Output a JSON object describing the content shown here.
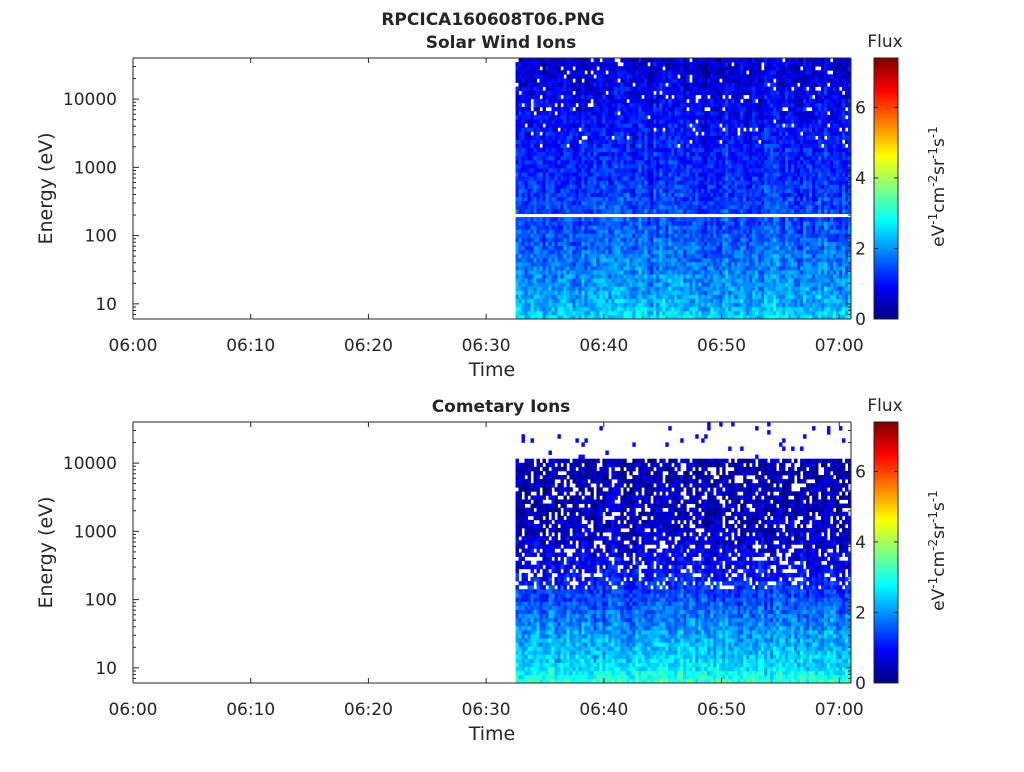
{
  "figure": {
    "title": "RPCICA160608T06.PNG"
  },
  "colors": {
    "colormap": [
      "#00007f",
      "#0000ff",
      "#007fff",
      "#00ffff",
      "#7fff7f",
      "#ffff00",
      "#ff7f00",
      "#ff0000",
      "#7f0000"
    ],
    "gap_line": "#ffffff",
    "axis": "#262626"
  },
  "chart_data": [
    {
      "type": "heatmap",
      "title": "Solar Wind Ions",
      "xlabel": "Time",
      "ylabel": "Energy (eV)",
      "y_scale": "log",
      "ylim": [
        6,
        40000
      ],
      "xlim": [
        "06:00",
        "07:01"
      ],
      "x_ticks": [
        "06:00",
        "06:10",
        "06:20",
        "06:30",
        "06:40",
        "06:50",
        "07:00"
      ],
      "y_ticks": [
        10,
        100,
        1000,
        10000
      ],
      "y_tick_labels": [
        "10",
        "100",
        "1000",
        "10000"
      ],
      "data_start": "06:32.5",
      "data_end": "07:01",
      "colorbar": {
        "title": "Flux",
        "label_parts": [
          "eV",
          "-1",
          "cm",
          "-2",
          "sr",
          "-1",
          "s",
          "-1"
        ],
        "ticks": [
          0,
          2,
          4,
          6
        ],
        "clim": [
          0,
          7.4
        ]
      },
      "intensity_profile": [
        {
          "energy": 6,
          "flux": 2.6
        },
        {
          "energy": 10,
          "flux": 2.2
        },
        {
          "energy": 30,
          "flux": 1.9
        },
        {
          "energy": 100,
          "flux": 1.6
        },
        {
          "energy": 200,
          "flux": 1.45
        },
        {
          "energy": 1000,
          "flux": 1.2
        },
        {
          "energy": 10000,
          "flux": 0.85
        },
        {
          "energy": 40000,
          "flux": 0.55
        }
      ],
      "gap_energy": 200
    },
    {
      "type": "heatmap",
      "title": "Cometary Ions",
      "xlabel": "Time",
      "ylabel": "Energy (eV)",
      "y_scale": "log",
      "ylim": [
        6,
        40000
      ],
      "xlim": [
        "06:00",
        "07:01"
      ],
      "x_ticks": [
        "06:00",
        "06:10",
        "06:20",
        "06:30",
        "06:40",
        "06:50",
        "07:00"
      ],
      "y_ticks": [
        10,
        100,
        1000,
        10000
      ],
      "y_tick_labels": [
        "10",
        "100",
        "1000",
        "10000"
      ],
      "data_start": "06:32.5",
      "data_end": "07:01",
      "colorbar": {
        "title": "Flux",
        "label_parts": [
          "eV",
          "-1",
          "cm",
          "-2",
          "sr",
          "-1",
          "s",
          "-1"
        ],
        "ticks": [
          0,
          2,
          4,
          6
        ],
        "clim": [
          0,
          7.4
        ]
      },
      "intensity_profile": [
        {
          "energy": 6,
          "flux": 3.2
        },
        {
          "energy": 10,
          "flux": 2.6
        },
        {
          "energy": 30,
          "flux": 2.1
        },
        {
          "energy": 100,
          "flux": 1.5
        },
        {
          "energy": 300,
          "flux": 0.9
        },
        {
          "energy": 1000,
          "flux": 0.5
        },
        {
          "energy": 11000,
          "flux": 0.35
        }
      ],
      "upper_cutoff": 11000
    }
  ]
}
